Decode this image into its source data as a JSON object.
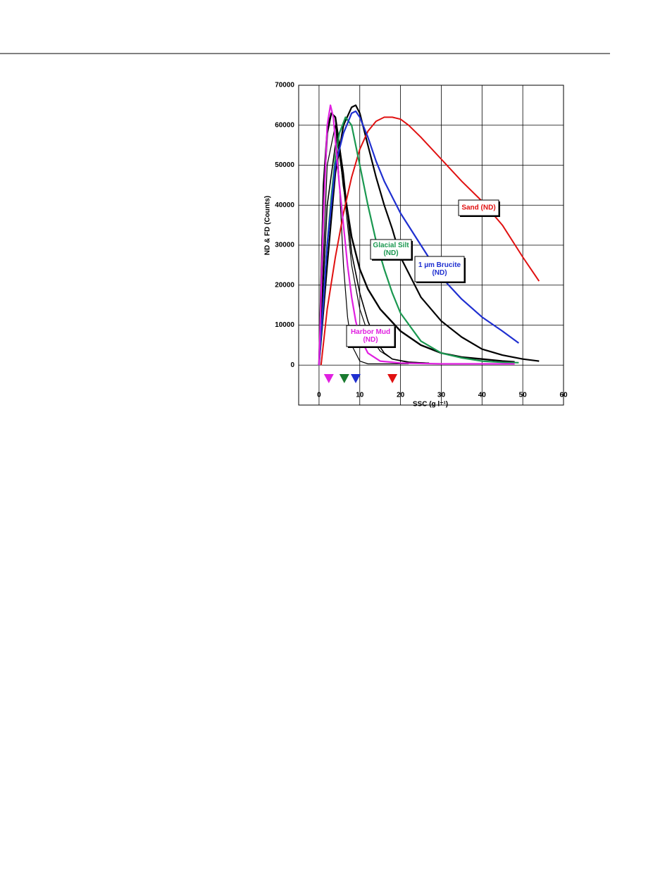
{
  "chart_data": {
    "type": "line",
    "xlabel": "SSC (g l⁻¹)",
    "ylabel": "ND & FD (Counts)",
    "xlim": [
      -5,
      60
    ],
    "xticks": [
      0,
      10,
      20,
      30,
      40,
      50,
      60
    ],
    "ylim": [
      -10000,
      70000
    ],
    "yticks": [
      0,
      10000,
      20000,
      30000,
      40000,
      50000,
      60000,
      70000
    ],
    "grid": true,
    "series": [
      {
        "label": [
          "Sand (ND)"
        ],
        "color": "#e01010",
        "x": [
          0.5,
          2,
          4,
          6,
          8,
          10,
          12,
          14,
          16,
          18,
          20,
          22,
          25,
          30,
          35,
          40,
          45,
          50,
          54
        ],
        "values": [
          0,
          14000,
          27000,
          38000,
          47000,
          54000,
          58500,
          61000,
          62000,
          62000,
          61500,
          60000,
          57000,
          51500,
          46000,
          41000,
          35000,
          27000,
          21000
        ]
      },
      {
        "label": [
          "Glacial Silt",
          "(ND)"
        ],
        "color": "#1a9850",
        "x": [
          0,
          1,
          2,
          3,
          4,
          5,
          6.5,
          8,
          10,
          12,
          14,
          16,
          18,
          20,
          25,
          30,
          35,
          40,
          45,
          49
        ],
        "values": [
          0,
          15000,
          30000,
          42000,
          52000,
          58000,
          62000,
          60000,
          50000,
          40000,
          31000,
          24000,
          18000,
          13000,
          6000,
          3000,
          1800,
          1000,
          700,
          600
        ]
      },
      {
        "label": [
          "1 µm Brucite",
          "(ND)"
        ],
        "color": "#1f2fd0",
        "x": [
          0,
          2,
          4,
          6,
          8,
          9,
          10,
          12,
          14,
          16,
          18,
          20,
          25,
          30,
          35,
          40,
          45,
          49
        ],
        "values": [
          0,
          30000,
          50000,
          58000,
          63000,
          63500,
          62000,
          57000,
          51000,
          46000,
          42000,
          38000,
          30000,
          22000,
          16500,
          12000,
          8500,
          5500
        ]
      },
      {
        "label": [
          "Harbor Mud",
          "(ND)"
        ],
        "color": "#e020e0",
        "x": [
          0,
          1,
          2,
          2.8,
          3.5,
          5,
          6,
          7,
          8,
          9,
          10,
          12,
          15,
          20,
          30,
          40,
          48
        ],
        "values": [
          0,
          35000,
          60000,
          65000,
          62000,
          45000,
          35000,
          25000,
          17000,
          11000,
          7000,
          3000,
          1000,
          500,
          300,
          300,
          300
        ]
      },
      {
        "color": "#000000",
        "x": [
          0,
          1,
          2,
          3,
          4,
          5,
          6,
          7,
          8,
          10,
          12,
          22
        ],
        "values": [
          0,
          45000,
          60000,
          63000,
          62000,
          45000,
          25000,
          12000,
          5000,
          1000,
          300,
          300
        ]
      },
      {
        "color": "#000000",
        "x": [
          0,
          2,
          4,
          6,
          8,
          10,
          12,
          15,
          18,
          22,
          27
        ],
        "values": [
          0,
          50000,
          60000,
          45000,
          25000,
          14000,
          8000,
          3500,
          1500,
          800,
          500
        ]
      },
      {
        "color": "#000000",
        "x": [
          0,
          2,
          4,
          5,
          6,
          8,
          10,
          12,
          14,
          16,
          18,
          22,
          27
        ],
        "values": [
          0,
          40000,
          55000,
          55000,
          48000,
          28000,
          18000,
          11000,
          6000,
          3000,
          1500,
          700,
          500
        ]
      },
      {
        "color": "#000000",
        "x": [
          0,
          1,
          2,
          3,
          4,
          5,
          6,
          8,
          10,
          12,
          15,
          20,
          25,
          30,
          35,
          40,
          45,
          48
        ],
        "values": [
          0,
          40000,
          58000,
          63000,
          62000,
          55000,
          45000,
          32000,
          24000,
          19000,
          14000,
          8500,
          5000,
          3000,
          2000,
          1500,
          1000,
          800
        ]
      },
      {
        "color": "#000000",
        "x": [
          0,
          2,
          4,
          6,
          8,
          9,
          10,
          12,
          14,
          16,
          18,
          20,
          25,
          30,
          35,
          40,
          45,
          50,
          54
        ],
        "values": [
          0,
          25000,
          48000,
          60000,
          64500,
          65000,
          63000,
          55000,
          47000,
          40000,
          34000,
          27000,
          17000,
          11000,
          7000,
          4000,
          2500,
          1500,
          1000
        ]
      }
    ],
    "markers": [
      {
        "x": 2.4,
        "color": "#e020e0"
      },
      {
        "x": 6.2,
        "color": "#1a7a30"
      },
      {
        "x": 9.0,
        "color": "#1f2fd0"
      },
      {
        "x": 18,
        "color": "#e01010"
      }
    ]
  }
}
